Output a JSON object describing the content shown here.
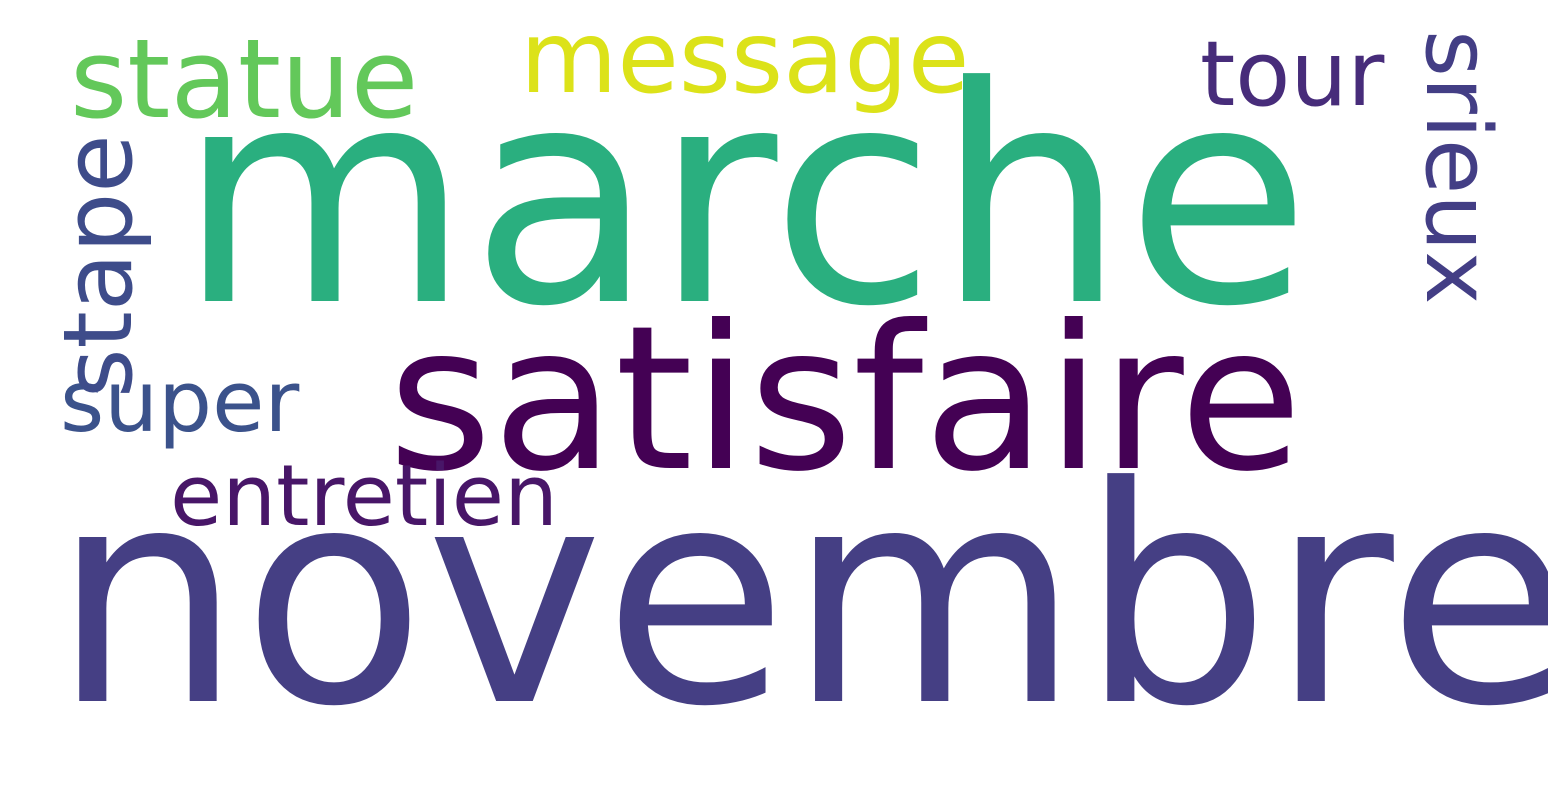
{
  "words": [
    {
      "text": "marche",
      "color": "#2aaf7f",
      "weight": 1.0
    },
    {
      "text": "novembre",
      "color": "#453f84",
      "weight": 0.95
    },
    {
      "text": "satisfaire",
      "color": "#440154",
      "weight": 0.68
    },
    {
      "text": "statue",
      "color": "#63c85a",
      "weight": 0.4
    },
    {
      "text": "message",
      "color": "#dce219",
      "weight": 0.35
    },
    {
      "text": "tour",
      "color": "#472c7a",
      "weight": 0.3
    },
    {
      "text": "super",
      "color": "#3b528b",
      "weight": 0.3
    },
    {
      "text": "entretien",
      "color": "#481668",
      "weight": 0.3
    },
    {
      "text": "stape",
      "color": "#3e4c8a",
      "weight": 0.33
    },
    {
      "text": "srieux",
      "color": "#433e85",
      "weight": 0.3
    }
  ]
}
